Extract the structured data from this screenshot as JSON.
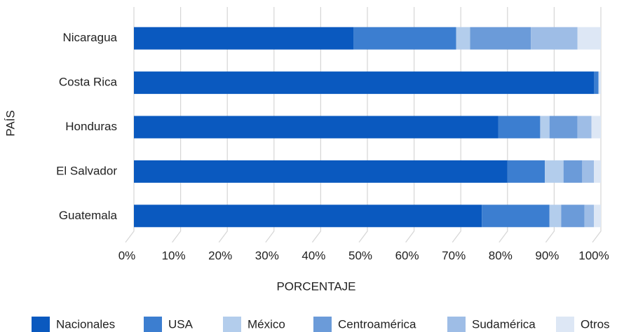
{
  "chart_data": {
    "type": "stacked-bar-horizontal",
    "categories": [
      "Nicaragua",
      "Costa Rica",
      "Honduras",
      "El Salvador",
      "Guatemala"
    ],
    "series": [
      {
        "name": "Nacionales",
        "color": "#0a59bf",
        "values": [
          47,
          98.5,
          78,
          80,
          74.5
        ]
      },
      {
        "name": "USA",
        "color": "#3c7ed0",
        "values": [
          22,
          1,
          9,
          8,
          14.5
        ]
      },
      {
        "name": "México",
        "color": "#b3cdec",
        "values": [
          3,
          0,
          2,
          4,
          2.5
        ]
      },
      {
        "name": "Centroamérica",
        "color": "#6b9bd9",
        "values": [
          13,
          0,
          6,
          4,
          5
        ]
      },
      {
        "name": "Sudamérica",
        "color": "#9ebde6",
        "values": [
          10,
          0,
          3,
          2.5,
          2
        ]
      },
      {
        "name": "Otros",
        "color": "#dde7f5",
        "values": [
          5,
          0.5,
          2,
          1.5,
          1.5
        ]
      }
    ],
    "xlim": [
      0,
      100
    ],
    "xticks": [
      {
        "value": 0,
        "label": "0%"
      },
      {
        "value": 10,
        "label": "10%"
      },
      {
        "value": 20,
        "label": "20%"
      },
      {
        "value": 30,
        "label": "30%"
      },
      {
        "value": 40,
        "label": "40%"
      },
      {
        "value": 50,
        "label": "50%"
      },
      {
        "value": 60,
        "label": "60%"
      },
      {
        "value": 70,
        "label": "70%"
      },
      {
        "value": 80,
        "label": "80%"
      },
      {
        "value": 90,
        "label": "90%"
      },
      {
        "value": 100,
        "label": "100%"
      }
    ],
    "x_label": "PORCENTAJE",
    "y_label": "PAÍS",
    "grid": true,
    "legend": "bottom"
  }
}
